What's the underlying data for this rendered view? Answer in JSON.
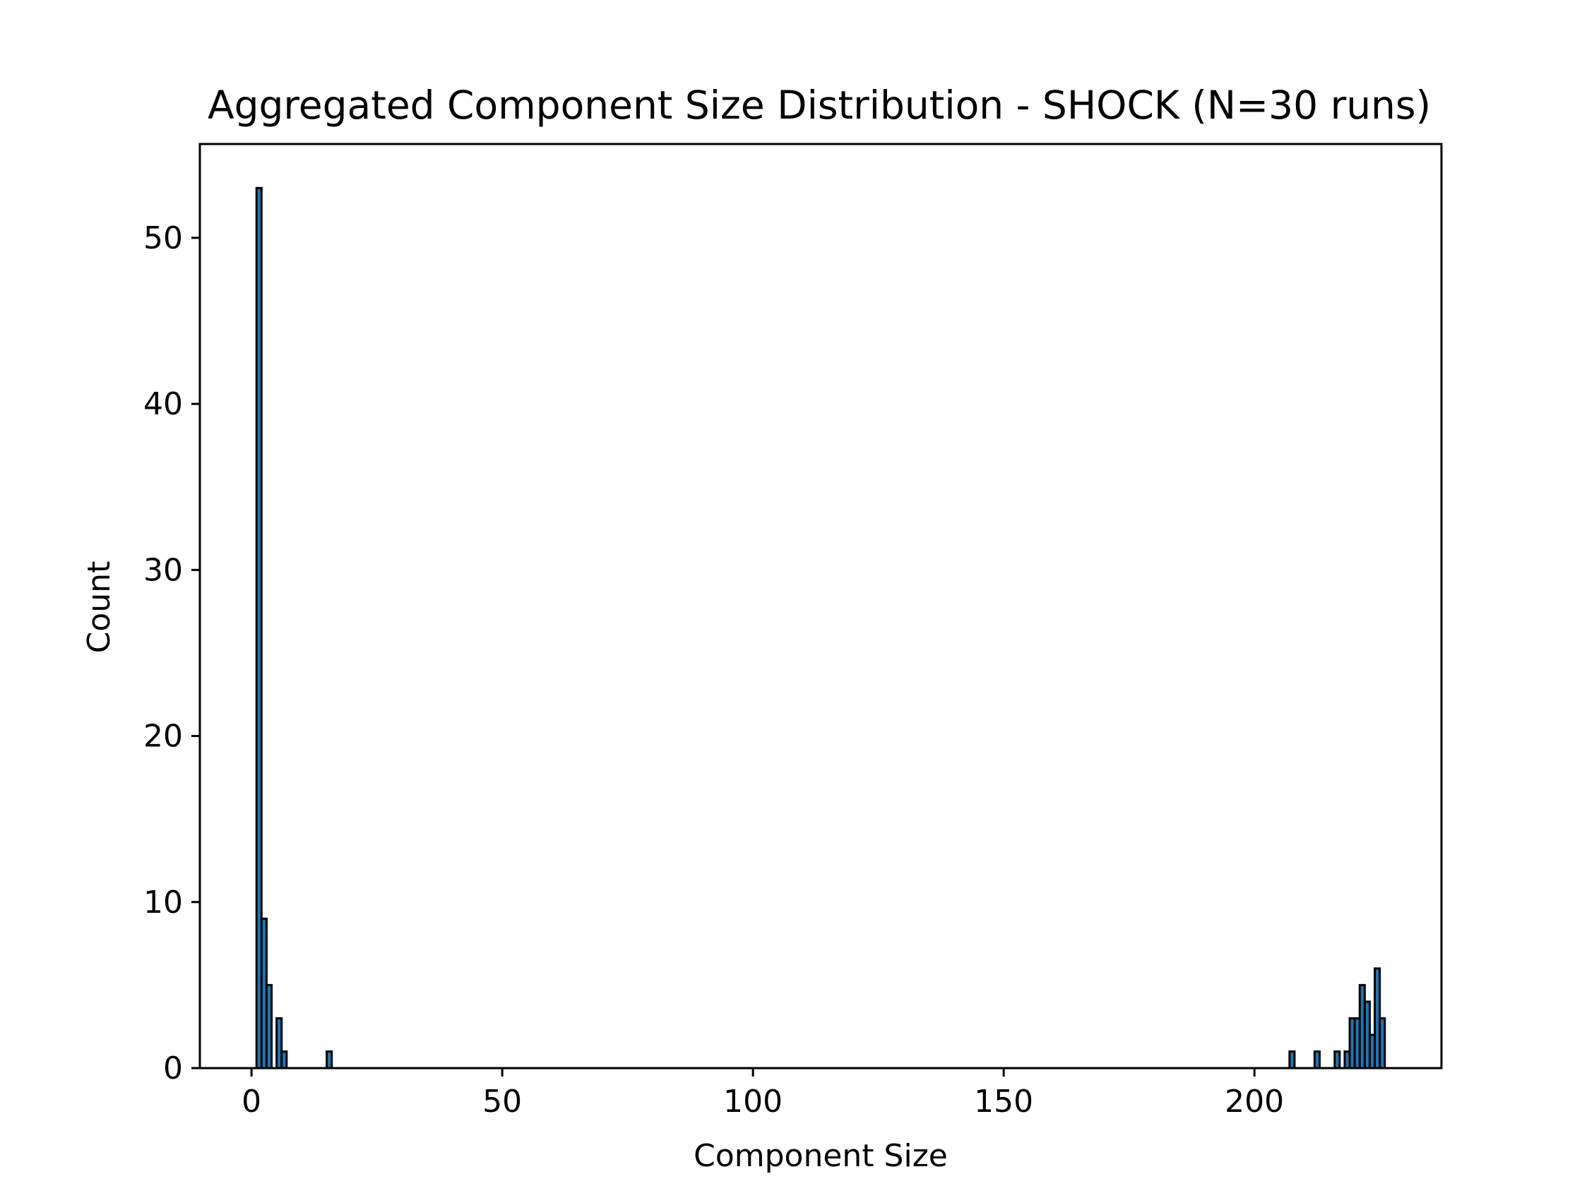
{
  "chart_data": {
    "type": "bar",
    "title": "Aggregated Component Size Distribution - SHOCK (N=30 runs)",
    "xlabel": "Component Size",
    "ylabel": "Count",
    "xlim": [
      -10.3,
      237.3
    ],
    "ylim": [
      0,
      55.65
    ],
    "bin_width": 1,
    "xticks": [
      0,
      50,
      100,
      150,
      200
    ],
    "yticks": [
      0,
      10,
      20,
      30,
      40,
      50
    ],
    "grid": false,
    "legend": "none",
    "bar_color": "#1f77b4",
    "edge_color": "#000000",
    "series": [
      {
        "bins": [
          {
            "x": 1,
            "count": 53
          },
          {
            "x": 2,
            "count": 9
          },
          {
            "x": 3,
            "count": 5
          },
          {
            "x": 5,
            "count": 3
          },
          {
            "x": 6,
            "count": 1
          },
          {
            "x": 15,
            "count": 1
          },
          {
            "x": 207,
            "count": 1
          },
          {
            "x": 212,
            "count": 1
          },
          {
            "x": 216,
            "count": 1
          },
          {
            "x": 218,
            "count": 1
          },
          {
            "x": 219,
            "count": 3
          },
          {
            "x": 220,
            "count": 3
          },
          {
            "x": 221,
            "count": 5
          },
          {
            "x": 222,
            "count": 4
          },
          {
            "x": 223,
            "count": 2
          },
          {
            "x": 224,
            "count": 6
          },
          {
            "x": 225,
            "count": 3
          }
        ]
      }
    ]
  }
}
